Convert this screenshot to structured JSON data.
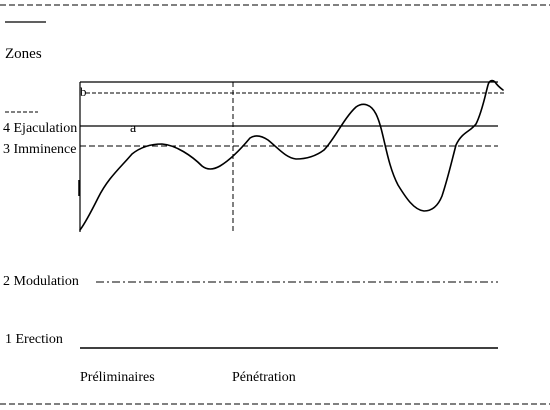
{
  "header": {
    "zones_label": "Zones"
  },
  "zones": {
    "z4_label": "4 Ejaculation",
    "z3_label": "3 Imminence",
    "z2_label": "2 Modulation",
    "z1_label": "1 Erection"
  },
  "markers": {
    "a": "a",
    "b": "b"
  },
  "phases": {
    "preliminaires": "Préliminaires",
    "penetration": "Pénétration"
  },
  "colors": {
    "ink": "#000000",
    "background": "#ffffff"
  }
}
